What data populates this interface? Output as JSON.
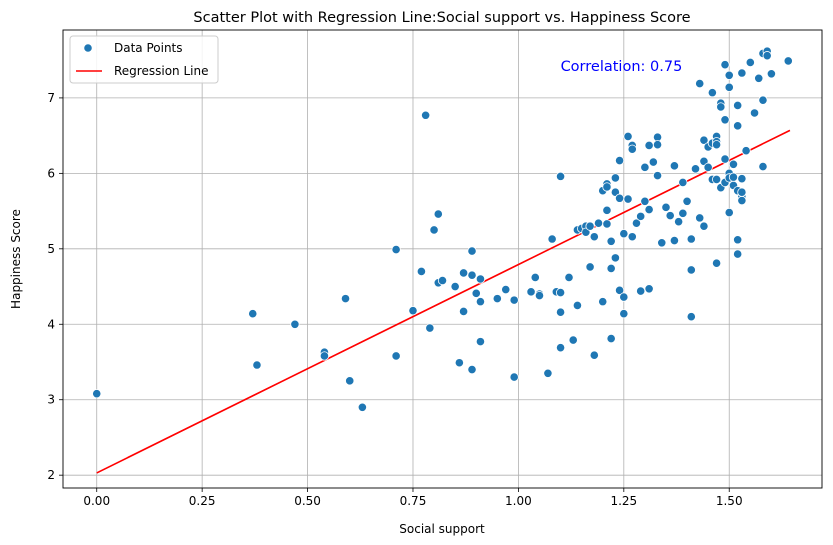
{
  "chart_data": {
    "type": "scatter",
    "title": "Scatter Plot with Regression Line:Social support  vs. Happiness Score",
    "xlabel": "Social support",
    "ylabel": "Happiness Score",
    "xlim": [
      -0.08,
      1.72
    ],
    "ylim": [
      1.83,
      7.9
    ],
    "xticks": [
      "0.00",
      "0.25",
      "0.50",
      "0.75",
      "1.00",
      "1.25",
      "1.50"
    ],
    "xtick_values": [
      0,
      0.25,
      0.5,
      0.75,
      1.0,
      1.25,
      1.5
    ],
    "yticks": [
      "2",
      "3",
      "4",
      "5",
      "6",
      "7"
    ],
    "ytick_values": [
      2,
      3,
      4,
      5,
      6,
      7
    ],
    "grid": true,
    "legend_position": "top-left",
    "annotation": {
      "text": "Correlation: 0.75",
      "color": "#0000ff",
      "x": 1.1,
      "y": 7.42
    },
    "colors": {
      "points": "#1f77b4",
      "line": "#ff0000"
    },
    "series": [
      {
        "name": "Data Points",
        "kind": "scatter",
        "points": [
          [
            0.0,
            3.08
          ],
          [
            0.37,
            4.14
          ],
          [
            0.38,
            3.46
          ],
          [
            0.47,
            4.0
          ],
          [
            0.54,
            3.63
          ],
          [
            0.54,
            3.58
          ],
          [
            0.59,
            4.34
          ],
          [
            0.6,
            3.25
          ],
          [
            0.63,
            2.9
          ],
          [
            0.71,
            4.99
          ],
          [
            0.71,
            3.58
          ],
          [
            0.75,
            4.18
          ],
          [
            0.77,
            4.7
          ],
          [
            0.78,
            6.77
          ],
          [
            0.79,
            3.95
          ],
          [
            0.8,
            5.25
          ],
          [
            0.81,
            5.46
          ],
          [
            0.81,
            4.55
          ],
          [
            0.82,
            4.58
          ],
          [
            0.85,
            4.5
          ],
          [
            0.86,
            3.49
          ],
          [
            0.87,
            4.68
          ],
          [
            0.87,
            4.17
          ],
          [
            0.89,
            4.97
          ],
          [
            0.89,
            4.65
          ],
          [
            0.89,
            3.4
          ],
          [
            0.9,
            4.41
          ],
          [
            0.91,
            4.3
          ],
          [
            0.91,
            4.6
          ],
          [
            0.91,
            3.77
          ],
          [
            0.95,
            4.34
          ],
          [
            0.97,
            4.46
          ],
          [
            0.99,
            4.32
          ],
          [
            0.99,
            3.3
          ],
          [
            1.03,
            4.43
          ],
          [
            1.04,
            4.62
          ],
          [
            1.05,
            4.4
          ],
          [
            1.05,
            4.38
          ],
          [
            1.07,
            3.35
          ],
          [
            1.08,
            5.13
          ],
          [
            1.09,
            4.43
          ],
          [
            1.1,
            4.16
          ],
          [
            1.1,
            3.69
          ],
          [
            1.1,
            4.42
          ],
          [
            1.1,
            5.96
          ],
          [
            1.12,
            4.62
          ],
          [
            1.13,
            3.79
          ],
          [
            1.14,
            4.25
          ],
          [
            1.14,
            5.25
          ],
          [
            1.15,
            5.27
          ],
          [
            1.16,
            5.3
          ],
          [
            1.16,
            5.22
          ],
          [
            1.17,
            5.3
          ],
          [
            1.17,
            4.76
          ],
          [
            1.18,
            5.16
          ],
          [
            1.18,
            3.59
          ],
          [
            1.19,
            5.34
          ],
          [
            1.2,
            4.3
          ],
          [
            1.2,
            5.77
          ],
          [
            1.21,
            5.86
          ],
          [
            1.21,
            5.82
          ],
          [
            1.21,
            5.51
          ],
          [
            1.21,
            5.33
          ],
          [
            1.22,
            5.1
          ],
          [
            1.22,
            3.81
          ],
          [
            1.22,
            4.74
          ],
          [
            1.23,
            5.94
          ],
          [
            1.23,
            5.75
          ],
          [
            1.23,
            4.88
          ],
          [
            1.24,
            6.17
          ],
          [
            1.24,
            5.67
          ],
          [
            1.24,
            4.45
          ],
          [
            1.25,
            5.2
          ],
          [
            1.25,
            4.14
          ],
          [
            1.25,
            4.36
          ],
          [
            1.26,
            6.49
          ],
          [
            1.26,
            5.66
          ],
          [
            1.27,
            6.37
          ],
          [
            1.27,
            6.32
          ],
          [
            1.27,
            5.16
          ],
          [
            1.28,
            5.34
          ],
          [
            1.29,
            5.43
          ],
          [
            1.29,
            4.44
          ],
          [
            1.3,
            6.08
          ],
          [
            1.3,
            5.63
          ],
          [
            1.31,
            6.37
          ],
          [
            1.31,
            5.52
          ],
          [
            1.31,
            4.47
          ],
          [
            1.32,
            6.15
          ],
          [
            1.33,
            6.48
          ],
          [
            1.33,
            6.38
          ],
          [
            1.33,
            5.97
          ],
          [
            1.34,
            5.08
          ],
          [
            1.35,
            5.55
          ],
          [
            1.36,
            5.44
          ],
          [
            1.37,
            6.1
          ],
          [
            1.37,
            5.11
          ],
          [
            1.38,
            5.36
          ],
          [
            1.39,
            5.88
          ],
          [
            1.39,
            5.47
          ],
          [
            1.4,
            5.63
          ],
          [
            1.41,
            5.13
          ],
          [
            1.41,
            4.72
          ],
          [
            1.41,
            4.1
          ],
          [
            1.42,
            6.06
          ],
          [
            1.43,
            5.41
          ],
          [
            1.43,
            7.19
          ],
          [
            1.44,
            6.44
          ],
          [
            1.44,
            5.3
          ],
          [
            1.44,
            6.16
          ],
          [
            1.45,
            6.35
          ],
          [
            1.45,
            6.08
          ],
          [
            1.46,
            5.92
          ],
          [
            1.46,
            6.4
          ],
          [
            1.46,
            7.07
          ],
          [
            1.47,
            6.49
          ],
          [
            1.47,
            5.92
          ],
          [
            1.47,
            6.42
          ],
          [
            1.47,
            6.38
          ],
          [
            1.47,
            4.81
          ],
          [
            1.48,
            6.93
          ],
          [
            1.48,
            6.88
          ],
          [
            1.48,
            5.81
          ],
          [
            1.49,
            7.44
          ],
          [
            1.49,
            6.71
          ],
          [
            1.49,
            5.88
          ],
          [
            1.49,
            6.19
          ],
          [
            1.5,
            7.3
          ],
          [
            1.5,
            7.14
          ],
          [
            1.5,
            5.48
          ],
          [
            1.5,
            6.0
          ],
          [
            1.5,
            5.94
          ],
          [
            1.51,
            5.84
          ],
          [
            1.51,
            6.12
          ],
          [
            1.51,
            5.95
          ],
          [
            1.52,
            6.9
          ],
          [
            1.52,
            5.77
          ],
          [
            1.52,
            5.12
          ],
          [
            1.52,
            4.93
          ],
          [
            1.52,
            6.63
          ],
          [
            1.53,
            7.33
          ],
          [
            1.53,
            5.93
          ],
          [
            1.53,
            5.69
          ],
          [
            1.53,
            5.64
          ],
          [
            1.53,
            5.75
          ],
          [
            1.54,
            6.3
          ],
          [
            1.55,
            7.47
          ],
          [
            1.56,
            6.8
          ],
          [
            1.57,
            7.26
          ],
          [
            1.58,
            7.59
          ],
          [
            1.58,
            6.97
          ],
          [
            1.58,
            6.09
          ],
          [
            1.59,
            7.62
          ],
          [
            1.59,
            7.56
          ],
          [
            1.6,
            7.32
          ],
          [
            1.64,
            7.49
          ]
        ]
      },
      {
        "name": "Regression Line",
        "kind": "line",
        "points": [
          [
            0.0,
            2.03
          ],
          [
            1.644,
            6.57
          ]
        ]
      }
    ]
  }
}
